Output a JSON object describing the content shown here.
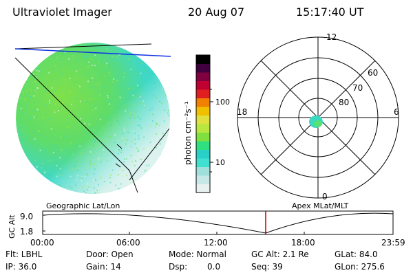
{
  "header": {
    "instrument": "Ultraviolet Imager",
    "date": "20 Aug 07",
    "time": "15:17:40 UT"
  },
  "colorbar": {
    "unit_label": "photon cm⁻²s⁻¹",
    "tick_labels": [
      "100",
      "10"
    ],
    "colors": [
      "#e8f0f0",
      "#c8e8e8",
      "#a0e0dc",
      "#40e0d0",
      "#28d0c8",
      "#30e080",
      "#80e040",
      "#b8e840",
      "#e0e040",
      "#f0c000",
      "#f08000",
      "#e02020",
      "#c00030",
      "#800040",
      "#400040",
      "#000000"
    ]
  },
  "polar_plot": {
    "mlt_labels": {
      "top": "12",
      "bottom": "0",
      "left": "18",
      "right": "6"
    },
    "lat_labels": [
      "60",
      "70",
      "80"
    ]
  },
  "captions": {
    "left": "Geographic Lat/Lon",
    "right": "Apex MLat/MLT"
  },
  "altitude_plot": {
    "axis_label": "GC Alt",
    "y_ticks": [
      "9.0",
      "1.8"
    ],
    "time_ticks": [
      "00:00",
      "06:00",
      "12:00",
      "18:00",
      "23:59"
    ],
    "marker_color": "#c00000"
  },
  "footer": {
    "row1": [
      "Flt: LBHL",
      "Door: Open",
      "Mode: Normal",
      "GC Alt: 2.1 Re",
      "GLat: 84.0"
    ],
    "row2": [
      "IP: 36.0",
      "Gain: 14",
      "Dsp:",
      "0.0",
      "Seq: 39",
      "GLon: 275.6"
    ]
  }
}
